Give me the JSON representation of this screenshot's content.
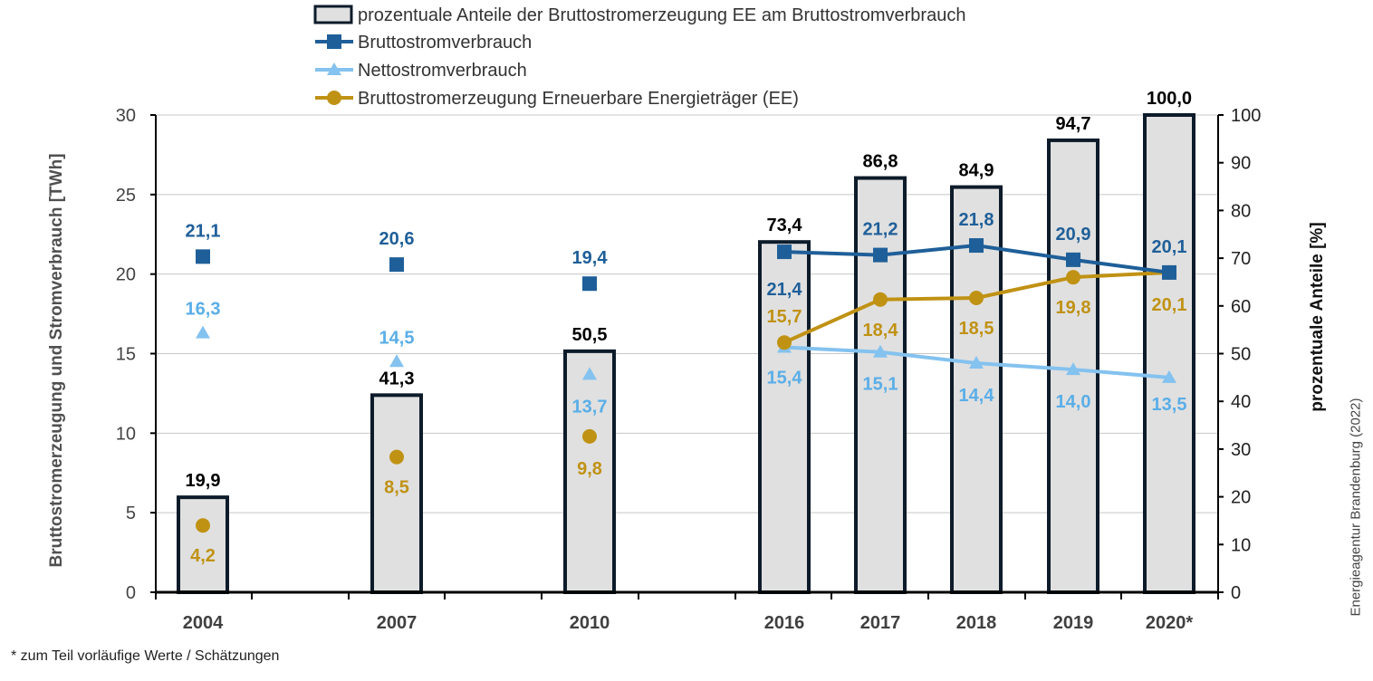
{
  "chart_data": {
    "type": "bar",
    "categories": [
      "2004",
      "2007",
      "2010",
      "2016",
      "2017",
      "2018",
      "2019",
      "2020*"
    ],
    "ylabel_left": "Bruttostromerzeugung und Stromverbrauch [TWh]",
    "ylabel_right": "prozentuale Anteile [%]",
    "ylim_left": [
      0,
      30
    ],
    "ylim_right": [
      0,
      100
    ],
    "yticks_left": [
      "0",
      "5",
      "10",
      "15",
      "20",
      "25",
      "30"
    ],
    "yticks_right": [
      "0",
      "10",
      "20",
      "30",
      "40",
      "50",
      "60",
      "70",
      "80",
      "90",
      "100"
    ],
    "legend_position": "top",
    "series": [
      {
        "name": "prozentuale Anteile der Bruttostromerzeugung EE am Bruttostromverbrauch",
        "kind": "bar",
        "axis": "right",
        "values": [
          19.9,
          41.3,
          50.5,
          73.4,
          86.8,
          84.9,
          94.7,
          100.0
        ],
        "labels": [
          "19,9",
          "41,3",
          "50,5",
          "73,4",
          "86,8",
          "84,9",
          "94,7",
          "100,0"
        ],
        "color": "#0d1b2a",
        "fill": "#e0e0e0"
      },
      {
        "name": "Bruttostromverbrauch",
        "kind": "line",
        "marker": "square",
        "axis": "left",
        "values": [
          21.1,
          20.6,
          19.4,
          21.4,
          21.2,
          21.8,
          20.9,
          20.1
        ],
        "labels": [
          "21,1",
          "20,6",
          "19,4",
          "21,4",
          "21,2",
          "21,8",
          "20,9",
          "20,1"
        ],
        "color": "#1f5f99"
      },
      {
        "name": "Nettostromverbrauch",
        "kind": "line",
        "marker": "triangle",
        "axis": "left",
        "values": [
          16.3,
          14.5,
          13.7,
          15.4,
          15.1,
          14.4,
          14.0,
          13.5
        ],
        "labels": [
          "16,3",
          "14,5",
          "13,7",
          "15,4",
          "15,1",
          "14,4",
          "14,0",
          "13,5"
        ],
        "color": "#84c2ef"
      },
      {
        "name": "Bruttostromerzeugung Erneuerbare Energieträger (EE)",
        "kind": "line",
        "marker": "circle",
        "axis": "left",
        "values": [
          4.2,
          8.5,
          9.8,
          15.7,
          18.4,
          18.5,
          19.8,
          20.1
        ],
        "labels": [
          "4,2",
          "8,5",
          "9,8",
          "15,7",
          "18,4",
          "18,5",
          "19,8",
          "20,1"
        ],
        "color": "#c09214"
      }
    ]
  },
  "footnote": "* zum Teil vorläufige Werte / Schätzungen",
  "source": "Energieagentur Brandenburg (2022)"
}
